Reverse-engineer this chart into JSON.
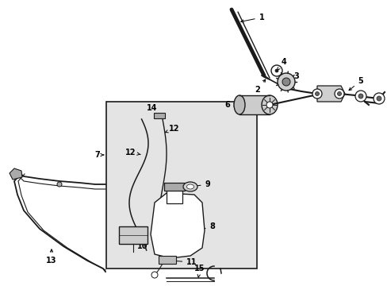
{
  "bg_color": "#ffffff",
  "box_facecolor": "#e4e4e4",
  "lc": "#1a1a1a",
  "figsize": [
    4.89,
    3.6
  ],
  "dpi": 100,
  "fs": 7.0,
  "lw": 1.0
}
